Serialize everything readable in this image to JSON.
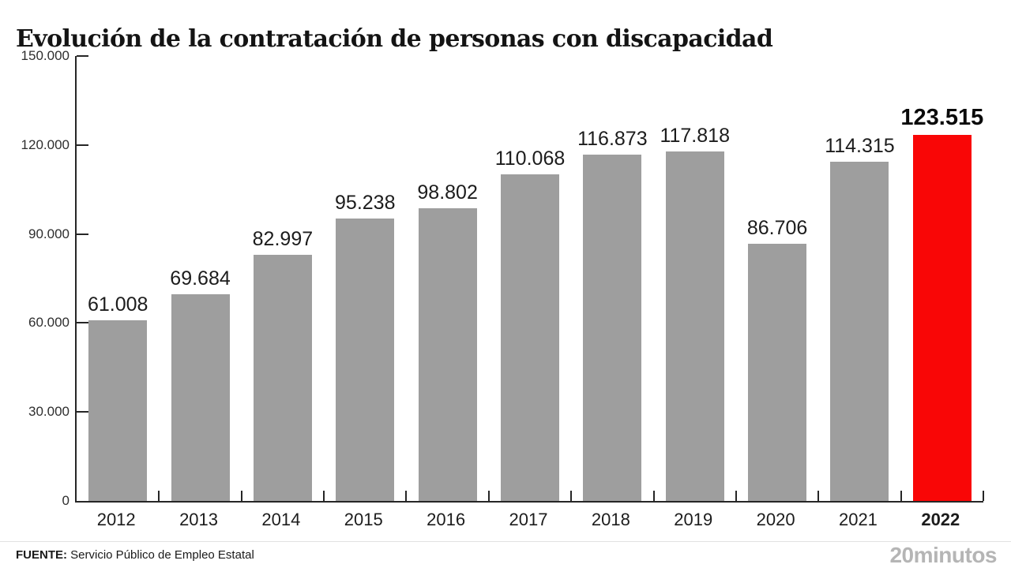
{
  "title": "Evolución de la contratación de personas con discapacidad",
  "chart_data": {
    "type": "bar",
    "title": "Evolución de la contratación de personas con discapacidad",
    "categories": [
      "2012",
      "2013",
      "2014",
      "2015",
      "2016",
      "2017",
      "2018",
      "2019",
      "2020",
      "2021",
      "2022"
    ],
    "values": [
      61008,
      69684,
      82997,
      95238,
      98802,
      110068,
      116873,
      117818,
      86706,
      114315,
      123515
    ],
    "value_labels": [
      "61.008",
      "69.684",
      "82.997",
      "95.238",
      "98.802",
      "110.068",
      "116.873",
      "117.818",
      "86.706",
      "114.315",
      "123.515"
    ],
    "highlight_index": 10,
    "xlabel": "",
    "ylabel": "",
    "ylim": [
      0,
      150000
    ],
    "y_tick_labels": [
      "150.000",
      "120.000",
      "90.000",
      "60.000",
      "30.000",
      "0"
    ],
    "y_tick_values": [
      150000,
      120000,
      90000,
      60000,
      30000,
      0
    ],
    "grid": false,
    "legend": null,
    "colors": {
      "bar": "#9e9e9e",
      "highlight_bar": "#f90606",
      "axis": "#262626",
      "text": "#1c1c1c"
    }
  },
  "footer": {
    "source_label": "FUENTE:",
    "source_text": " Servicio Público de Empleo Estatal",
    "logo_text": "20minutos"
  }
}
